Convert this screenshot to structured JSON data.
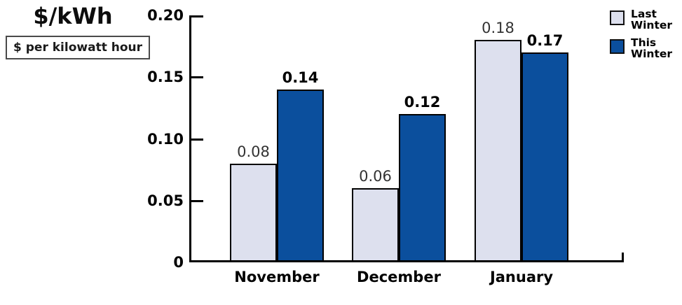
{
  "header": {
    "title": "$/kWh",
    "unit_label": "$ per kilowatt hour"
  },
  "chart_data": {
    "type": "bar",
    "title": "$/kWh",
    "subtitle": "$ per kilowatt hour",
    "categories": [
      "November",
      "December",
      "January"
    ],
    "series": [
      {
        "name": "Last Winter",
        "values": [
          0.08,
          0.06,
          0.18
        ],
        "labels": [
          "0.08",
          "0.06",
          "0.18"
        ],
        "color": "#dde0ee",
        "label_weight": "regular"
      },
      {
        "name": "This Winter",
        "values": [
          0.14,
          0.12,
          0.17
        ],
        "labels": [
          "0.14",
          "0.12",
          "0.17"
        ],
        "color": "#0b4f9d",
        "label_weight": "bold"
      }
    ],
    "xlabel": "",
    "ylabel": "$/kWh",
    "ylim": [
      0,
      0.2
    ],
    "yticks": [
      0,
      0.05,
      0.1,
      0.15,
      0.2
    ],
    "ytick_labels": [
      "0",
      "0.05",
      "0.10",
      "0.15",
      "0.20"
    ],
    "grid": false,
    "legend_position": "top-right"
  },
  "legend": {
    "items": [
      {
        "lines": [
          "Last",
          "Winter"
        ],
        "color": "#dde0ee"
      },
      {
        "lines": [
          "This",
          "Winter"
        ],
        "color": "#0b4f9d"
      }
    ]
  },
  "colors": {
    "last_winter": "#dde0ee",
    "this_winter": "#0b4f9d",
    "axis": "#000000"
  }
}
